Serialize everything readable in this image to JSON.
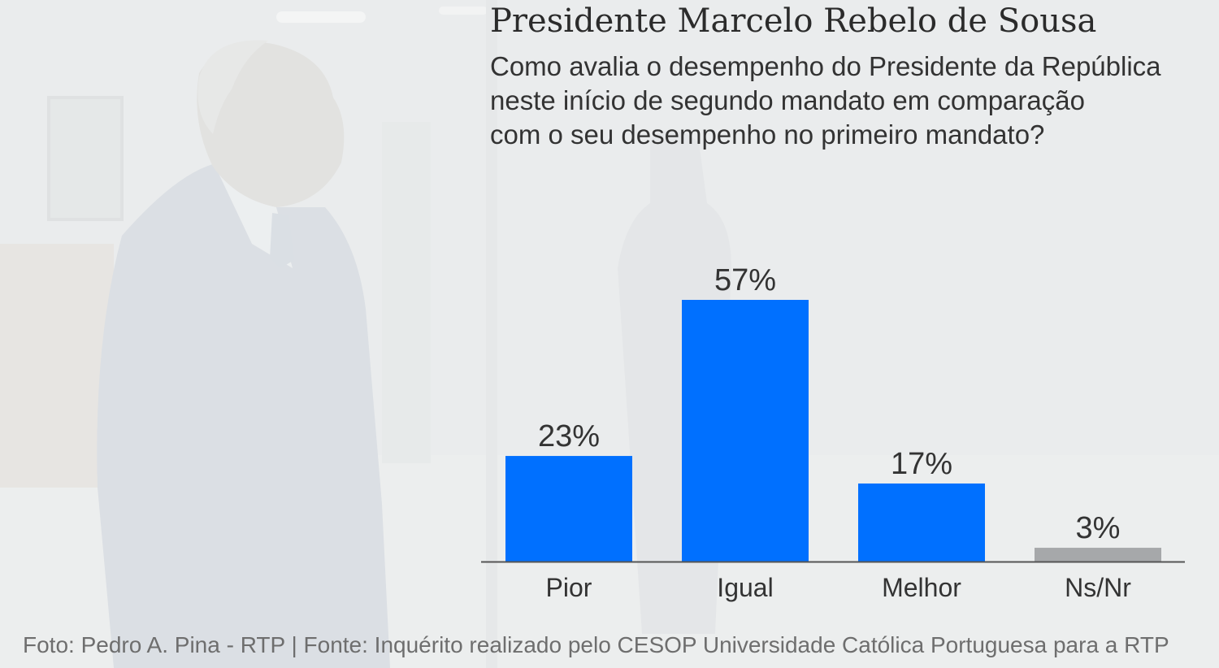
{
  "title": "Presidente Marcelo Rebelo de Sousa",
  "subtitle": "Como avalia o desempenho do Presidente da República\nneste início de segundo mandato em comparação\ncom o seu desempenho no primeiro mandato?",
  "footer": "Foto: Pedro A. Pina - RTP | Fonte: Inquérito realizado pelo CESOP Universidade Católica Portuguesa para a RTP",
  "colors": {
    "bar_primary": "#0070ff",
    "bar_muted": "#a6a8aa",
    "axis": "#555555",
    "label": "#333333"
  },
  "chart_data": {
    "type": "bar",
    "title": "",
    "xlabel": "",
    "ylabel": "",
    "categories": [
      "Pior",
      "Igual",
      "Melhor",
      "Ns/Nr"
    ],
    "values": [
      23,
      57,
      17,
      3
    ],
    "data_labels": [
      "23%",
      "57%",
      "17%",
      "3%"
    ],
    "bar_colors": [
      "#0070ff",
      "#0070ff",
      "#0070ff",
      "#a6a8aa"
    ],
    "ylim": [
      0,
      57
    ],
    "grid": false,
    "legend": "none"
  }
}
